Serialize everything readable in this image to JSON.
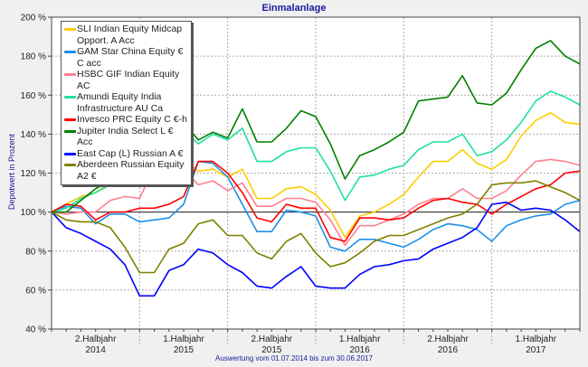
{
  "chart_data": {
    "type": "line",
    "title": "Einmalanlage",
    "ylabel": "Depotwert in Prozent",
    "xlabel": "Auswertung vom 01.07.2014 bis zum 30.06.2017",
    "ylim": [
      40,
      200
    ],
    "yticks": [
      "40 %",
      "60 %",
      "80 %",
      "100 %",
      "120 %",
      "140 %",
      "160 %",
      "180 %",
      "200 %"
    ],
    "ytick_values": [
      40,
      60,
      80,
      100,
      120,
      140,
      160,
      180,
      200
    ],
    "x_months": 36,
    "xticks": [
      {
        "line1": "2.Halbjahr",
        "line2": "2014"
      },
      {
        "line1": "1.Halbjahr",
        "line2": "2015"
      },
      {
        "line1": "2.Halbjahr",
        "line2": "2015"
      },
      {
        "line1": "1.Halbjahr",
        "line2": "2016"
      },
      {
        "line1": "2.Halbjahr",
        "line2": "2016"
      },
      {
        "line1": "1.Halbjahr",
        "line2": "2017"
      }
    ],
    "grid": true,
    "legend_position": "top-left",
    "series": [
      {
        "name": "SLI Indian Equity Midcap Opport. A Acc",
        "color": "#ffcc00",
        "values": [
          100,
          104,
          108,
          110,
          115,
          117,
          114,
          128,
          130,
          127,
          121,
          122,
          118,
          122,
          107,
          107,
          112,
          113,
          109,
          101,
          87,
          98,
          100,
          104,
          109,
          118,
          126,
          126,
          132,
          125,
          122,
          127,
          139,
          147,
          151,
          146,
          145
        ]
      },
      {
        "name": "GAM Star China Equity € C acc",
        "color": "#1e90e8",
        "values": [
          100,
          103,
          102,
          94,
          99,
          99,
          95,
          96,
          97,
          104,
          126,
          125,
          118,
          104,
          90,
          90,
          101,
          100,
          98,
          82,
          80,
          86,
          86,
          84,
          82,
          86,
          91,
          94,
          93,
          91,
          85,
          93,
          96,
          98,
          99,
          104,
          106
        ]
      },
      {
        "name": "HSBC GIF Indian Equity AC",
        "color": "#ff8090",
        "values": [
          100,
          99,
          100,
          100,
          106,
          108,
          107,
          123,
          126,
          122,
          114,
          116,
          111,
          115,
          103,
          103,
          107,
          107,
          105,
          96,
          83,
          93,
          93,
          96,
          99,
          104,
          107,
          107,
          112,
          107,
          107,
          111,
          119,
          126,
          127,
          126,
          124
        ]
      },
      {
        "name": "Amundi Equity India Infrastructure AU Ca",
        "color": "#20e0a0",
        "values": [
          100,
          102,
          107,
          110,
          114,
          117,
          120,
          120,
          140,
          142,
          135,
          140,
          137,
          143,
          126,
          126,
          131,
          133,
          133,
          121,
          106,
          118,
          119,
          122,
          124,
          132,
          136,
          136,
          140,
          129,
          131,
          137,
          146,
          157,
          162,
          159,
          155
        ]
      },
      {
        "name": "Invesco PRC Equity C €-h",
        "color": "#ff0000",
        "values": [
          100,
          104,
          103,
          96,
          100,
          100,
          102,
          102,
          104,
          108,
          126,
          126,
          120,
          110,
          97,
          95,
          104,
          102,
          102,
          87,
          85,
          97,
          97,
          96,
          97,
          102,
          106,
          107,
          105,
          104,
          99,
          104,
          108,
          112,
          114,
          120,
          121
        ]
      },
      {
        "name": "Jupiter India Select L € Acc",
        "color": "#008000",
        "values": [
          100,
          100,
          106,
          112,
          116,
          123,
          125,
          148,
          150,
          146,
          137,
          141,
          138,
          153,
          136,
          136,
          143,
          152,
          149,
          135,
          117,
          129,
          132,
          136,
          141,
          157,
          158,
          159,
          170,
          156,
          155,
          161,
          173,
          184,
          188,
          180,
          176
        ]
      },
      {
        "name": "East Cap (L) Russian A €",
        "color": "#0000ff",
        "values": [
          100,
          92,
          89,
          85,
          81,
          73,
          57,
          57,
          70,
          73,
          81,
          79,
          73,
          69,
          62,
          61,
          67,
          72,
          62,
          61,
          61,
          68,
          72,
          73,
          75,
          76,
          81,
          84,
          87,
          92,
          104,
          105,
          101,
          102,
          101,
          96,
          90
        ]
      },
      {
        "name": "Aberdeen Russian Equity A2 €",
        "color": "#808000",
        "values": [
          100,
          96,
          95,
          95,
          92,
          82,
          69,
          69,
          81,
          84,
          94,
          96,
          88,
          88,
          79,
          76,
          85,
          89,
          79,
          72,
          74,
          79,
          85,
          88,
          88,
          91,
          94,
          97,
          99,
          104,
          114,
          115,
          115,
          116,
          113,
          110,
          106
        ]
      }
    ]
  }
}
